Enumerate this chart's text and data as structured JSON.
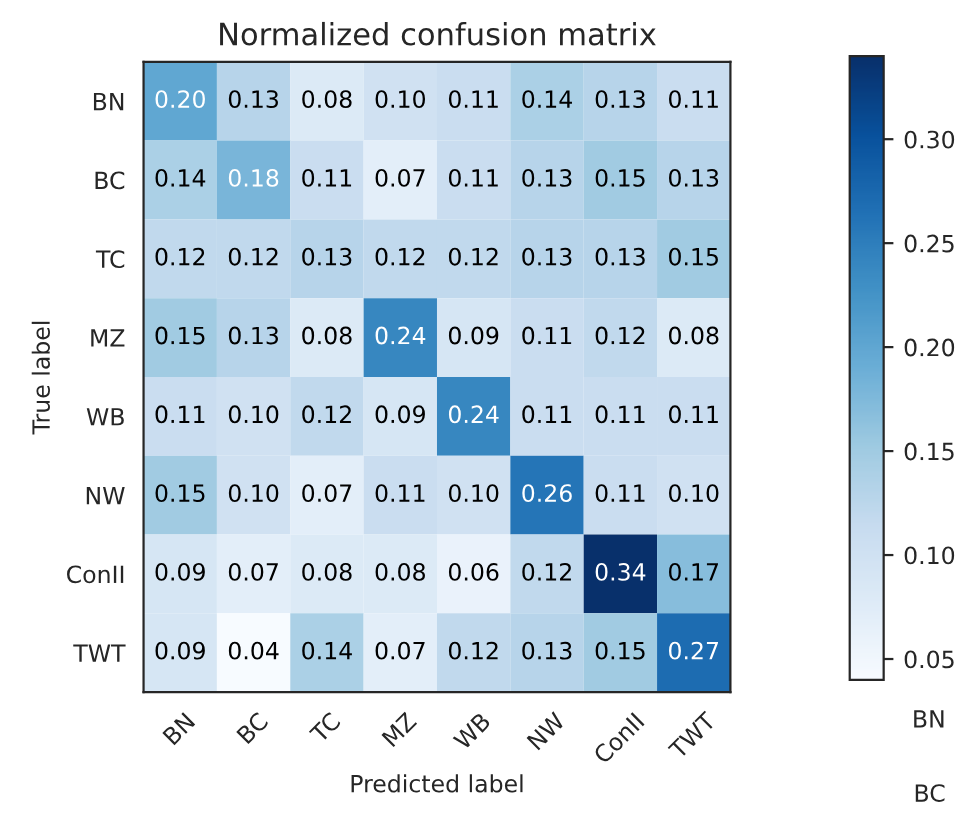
{
  "chart_data": {
    "type": "heatmap",
    "title": "Normalized confusion matrix",
    "xlabel": "Predicted label",
    "ylabel": "True label",
    "categories": [
      "BN",
      "BC",
      "TC",
      "MZ",
      "WB",
      "NW",
      "ConII",
      "TWT"
    ],
    "y_categories": [
      "BN",
      "BC",
      "TC",
      "MZ",
      "WB",
      "NW",
      "ConII",
      "TWT"
    ],
    "cells": [
      [
        0.2,
        0.13,
        0.08,
        0.1,
        0.11,
        0.14,
        0.13,
        0.11
      ],
      [
        0.14,
        0.18,
        0.11,
        0.07,
        0.11,
        0.13,
        0.15,
        0.13
      ],
      [
        0.12,
        0.12,
        0.13,
        0.12,
        0.12,
        0.13,
        0.13,
        0.15
      ],
      [
        0.15,
        0.13,
        0.08,
        0.24,
        0.09,
        0.11,
        0.12,
        0.08
      ],
      [
        0.11,
        0.1,
        0.12,
        0.09,
        0.24,
        0.11,
        0.11,
        0.11
      ],
      [
        0.15,
        0.1,
        0.07,
        0.11,
        0.1,
        0.26,
        0.11,
        0.1
      ],
      [
        0.09,
        0.07,
        0.08,
        0.08,
        0.06,
        0.12,
        0.34,
        0.17
      ],
      [
        0.09,
        0.04,
        0.14,
        0.07,
        0.12,
        0.13,
        0.15,
        0.27
      ]
    ],
    "clim": [
      0.04,
      0.34
    ],
    "cticks": [
      {
        "value": 0.05,
        "label": "0.05"
      },
      {
        "value": 0.1,
        "label": "0.10"
      },
      {
        "value": 0.15,
        "label": "0.15"
      },
      {
        "value": 0.2,
        "label": "0.20"
      },
      {
        "value": 0.25,
        "label": "0.25"
      },
      {
        "value": 0.3,
        "label": "0.30"
      }
    ],
    "cell_labels": [
      [
        "0.20",
        "0.13",
        "0.08",
        "0.10",
        "0.11",
        "0.14",
        "0.13",
        "0.11"
      ],
      [
        "0.14",
        "0.18",
        "0.11",
        "0.07",
        "0.11",
        "0.13",
        "0.15",
        "0.13"
      ],
      [
        "0.12",
        "0.12",
        "0.13",
        "0.12",
        "0.12",
        "0.13",
        "0.13",
        "0.15"
      ],
      [
        "0.15",
        "0.13",
        "0.08",
        "0.24",
        "0.09",
        "0.11",
        "0.12",
        "0.08"
      ],
      [
        "0.11",
        "0.10",
        "0.12",
        "0.09",
        "0.24",
        "0.11",
        "0.11",
        "0.11"
      ],
      [
        "0.15",
        "0.10",
        "0.07",
        "0.11",
        "0.10",
        "0.26",
        "0.11",
        "0.10"
      ],
      [
        "0.09",
        "0.07",
        "0.08",
        "0.08",
        "0.06",
        "0.12",
        "0.34",
        "0.17"
      ],
      [
        "0.09",
        "0.04",
        "0.14",
        "0.07",
        "0.12",
        "0.13",
        "0.15",
        "0.27"
      ]
    ],
    "data_labels": true,
    "annotations": [
      "BN",
      "BC"
    ]
  }
}
